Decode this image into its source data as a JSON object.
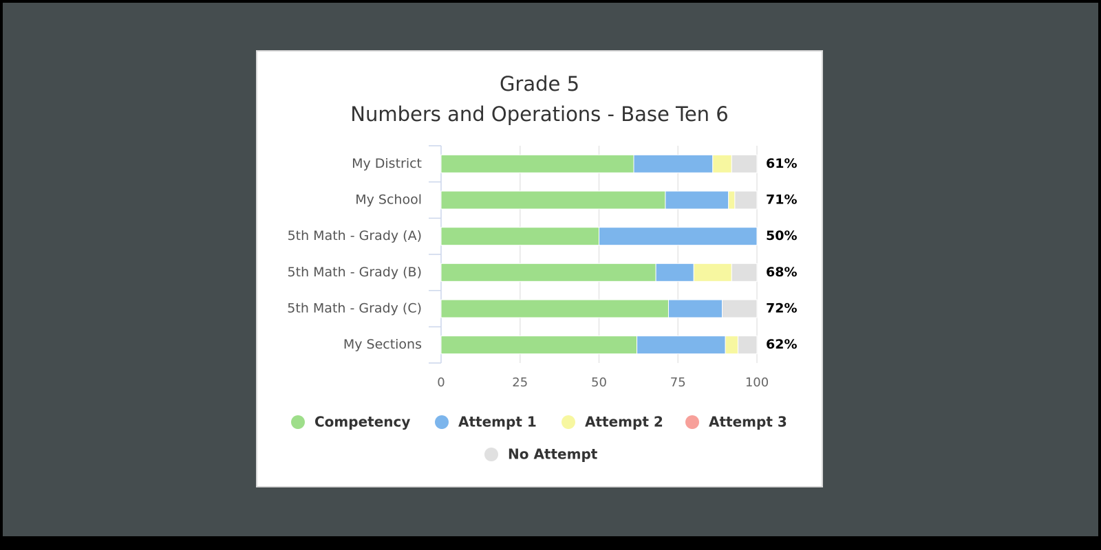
{
  "chart_data": {
    "type": "stacked-bar-horizontal",
    "title": "Grade 5",
    "subtitle": "Numbers and Operations - Base Ten 6",
    "categories": [
      "My District",
      "My School",
      "5th Math - Grady (A)",
      "5th Math - Grady (B)",
      "5th Math - Grady (C)",
      "My Sections"
    ],
    "series": [
      {
        "name": "Competency",
        "color": "#9ede8a",
        "values": [
          61,
          71,
          50,
          68,
          72,
          62
        ],
        "value_labels": [
          "61%",
          "71%",
          "50%",
          "68%",
          "72%",
          "62%"
        ]
      },
      {
        "name": "Attempt 1",
        "color": "#7cb5ec",
        "values": [
          25,
          20,
          50,
          12,
          17,
          28
        ]
      },
      {
        "name": "Attempt 2",
        "color": "#f7f7a0",
        "values": [
          6,
          2,
          0,
          12,
          0,
          4
        ]
      },
      {
        "name": "Attempt 3",
        "color": "#f7a09a",
        "values": [
          0,
          0,
          0,
          0,
          0,
          0
        ]
      },
      {
        "name": "No Attempt",
        "color": "#e0e0e0",
        "values": [
          8,
          7,
          0,
          8,
          11,
          6
        ]
      }
    ],
    "xlim": [
      0,
      100
    ],
    "xticks": [
      0,
      25,
      50,
      75,
      100
    ],
    "grid": true
  }
}
